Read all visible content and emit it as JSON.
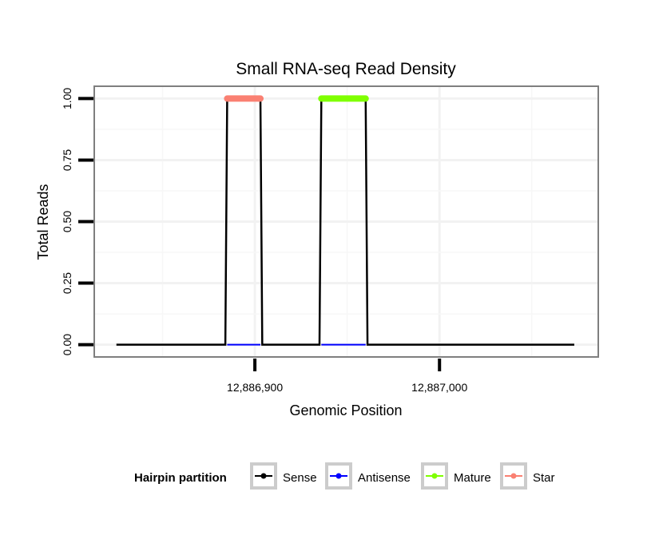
{
  "chart_data": {
    "type": "line",
    "title": "Small RNA-seq Read Density",
    "xlabel": "Genomic Position",
    "ylabel": "Total Reads",
    "xlim": [
      12886813,
      12887086
    ],
    "ylim": [
      -0.05,
      1.05
    ],
    "x_ticks": [
      12886900,
      12887000
    ],
    "x_tick_labels": [
      "12,886,900",
      "12,887,000"
    ],
    "x_minor_grid": [
      12886850,
      12886950,
      12887050
    ],
    "y_ticks": [
      0,
      0.25,
      0.5,
      0.75,
      1
    ],
    "y_tick_labels": [
      "0.00",
      "0.25",
      "0.50",
      "0.75",
      "1.00"
    ],
    "grid": true,
    "legend": {
      "title": "Hairpin partition",
      "placement": "bottom",
      "entries": [
        "Sense",
        "Antisense",
        "Mature",
        "Star"
      ]
    },
    "series": [
      {
        "name": "Sense",
        "color": "#000000",
        "x": [
          12886825,
          12886884,
          12886885,
          12886903,
          12886904,
          12886935,
          12886936,
          12886960,
          12886961,
          12887073
        ],
        "y": [
          0,
          0,
          1,
          1,
          0,
          0,
          1,
          1,
          0,
          0
        ]
      },
      {
        "name": "Antisense",
        "color": "#0000ff",
        "x": [
          12886885,
          12886903,
          12886936,
          12886960
        ],
        "y": [
          0,
          0,
          0,
          0
        ],
        "segments": [
          [
            0,
            1
          ],
          [
            2,
            3
          ]
        ]
      },
      {
        "name": "Mature",
        "color": "#7fff00",
        "x": [
          12886936,
          12886960
        ],
        "y": [
          1,
          1
        ]
      },
      {
        "name": "Star",
        "color": "#fa8072",
        "x": [
          12886885,
          12886903
        ],
        "y": [
          1,
          1
        ]
      }
    ]
  }
}
